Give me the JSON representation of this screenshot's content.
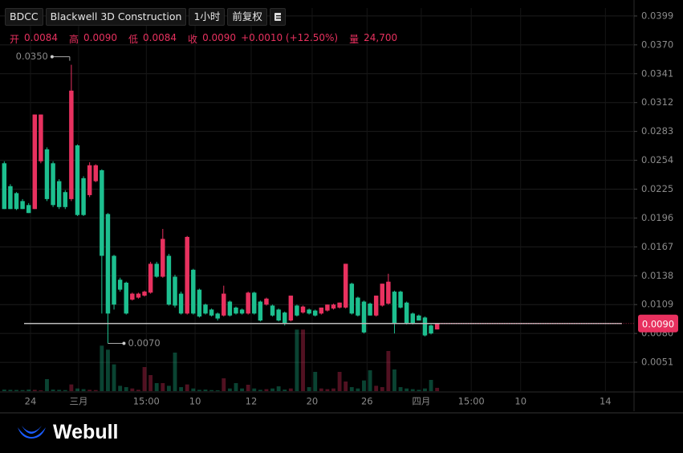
{
  "chart_data": {
    "type": "candlestick",
    "symbol": "BDCC",
    "name": "Blackwell 3D Construction",
    "interval": "1小时",
    "adjust": "前复权",
    "legend": {
      "open_label": "开",
      "open": "0.0084",
      "high_label": "高",
      "high": "0.0090",
      "low_label": "低",
      "low": "0.0084",
      "close_label": "收",
      "close": "0.0090",
      "change": "+0.0010 (+12.50%)",
      "volume_label": "量",
      "volume": "24,700"
    },
    "up_color": "#e8315f",
    "down_color": "#1dbf8f",
    "open": [
      0.0251,
      0.0228,
      0.0221,
      0.0213,
      0.0209,
      0.0205,
      0.0253,
      0.0265,
      0.0251,
      0.0233,
      0.0222,
      0.0215,
      0.0269,
      0.0236,
      0.0219,
      0.0233,
      0.0244,
      0.02,
      0.0158,
      0.0134,
      0.0131,
      0.0114,
      0.0116,
      0.0118,
      0.0121,
      0.015,
      0.0137,
      0.0158,
      0.0137,
      0.012,
      0.01,
      0.0144,
      0.0124,
      0.0109,
      0.0104,
      0.01,
      0.0098,
      0.0112,
      0.0106,
      0.0104,
      0.01,
      0.0121,
      0.0112,
      0.0109,
      0.0108,
      0.0104,
      0.0101,
      0.0093,
      0.0108,
      0.0101,
      0.0104,
      0.0103,
      0.01,
      0.0103,
      0.0105,
      0.0106,
      0.0106,
      0.013,
      0.0116,
      0.0112,
      0.011,
      0.0098,
      0.0108,
      0.011,
      0.0122,
      0.0122,
      0.0111,
      0.01,
      0.0098,
      0.0096,
      0.0088,
      0.0084
    ],
    "high": [
      0.0253,
      0.023,
      0.0222,
      0.0215,
      0.0211,
      0.03,
      0.03,
      0.0267,
      0.0253,
      0.0235,
      0.0224,
      0.035,
      0.027,
      0.0238,
      0.0252,
      0.025,
      0.0245,
      0.0201,
      0.0159,
      0.0136,
      0.0132,
      0.0121,
      0.0121,
      0.0123,
      0.0152,
      0.0152,
      0.0185,
      0.016,
      0.0139,
      0.0122,
      0.0178,
      0.0145,
      0.0125,
      0.011,
      0.0105,
      0.0101,
      0.0128,
      0.0113,
      0.0107,
      0.0105,
      0.0122,
      0.0122,
      0.0113,
      0.0116,
      0.0109,
      0.0105,
      0.0102,
      0.0118,
      0.0109,
      0.0108,
      0.0105,
      0.0104,
      0.0106,
      0.0109,
      0.011,
      0.0111,
      0.015,
      0.0131,
      0.0117,
      0.0113,
      0.0111,
      0.0118,
      0.013,
      0.014,
      0.0123,
      0.0123,
      0.0112,
      0.0101,
      0.0099,
      0.0097,
      0.0089,
      0.009
    ],
    "low": [
      0.0205,
      0.0205,
      0.0204,
      0.0205,
      0.0201,
      0.0205,
      0.0251,
      0.0213,
      0.0207,
      0.0205,
      0.0205,
      0.0213,
      0.0198,
      0.0198,
      0.0217,
      0.0232,
      0.01,
      0.007,
      0.0104,
      0.0122,
      0.0099,
      0.0113,
      0.0115,
      0.0117,
      0.012,
      0.0136,
      0.0136,
      0.0108,
      0.0106,
      0.0099,
      0.0099,
      0.0099,
      0.0096,
      0.0099,
      0.0097,
      0.0093,
      0.0097,
      0.0097,
      0.0099,
      0.0099,
      0.0099,
      0.0099,
      0.0092,
      0.0108,
      0.0097,
      0.0092,
      0.0088,
      0.0092,
      0.0097,
      0.01,
      0.0099,
      0.0097,
      0.0099,
      0.0102,
      0.0104,
      0.0105,
      0.0105,
      0.0099,
      0.0097,
      0.008,
      0.0098,
      0.0097,
      0.0107,
      0.0109,
      0.008,
      0.0105,
      0.0089,
      0.0089,
      0.0093,
      0.0077,
      0.0079,
      0.0084
    ],
    "close": [
      0.0205,
      0.0205,
      0.0205,
      0.0205,
      0.0201,
      0.03,
      0.03,
      0.0215,
      0.0209,
      0.0207,
      0.0207,
      0.0324,
      0.0199,
      0.0199,
      0.0249,
      0.0249,
      0.0158,
      0.01,
      0.0109,
      0.0124,
      0.01,
      0.012,
      0.012,
      0.0122,
      0.015,
      0.0137,
      0.0175,
      0.0109,
      0.0108,
      0.01,
      0.0177,
      0.01,
      0.0097,
      0.01,
      0.0098,
      0.0095,
      0.012,
      0.0098,
      0.01,
      0.01,
      0.0121,
      0.01,
      0.0093,
      0.0115,
      0.0098,
      0.0093,
      0.009,
      0.0118,
      0.0098,
      0.0107,
      0.01,
      0.0098,
      0.0106,
      0.0109,
      0.0109,
      0.0111,
      0.015,
      0.01,
      0.0098,
      0.0081,
      0.0098,
      0.0118,
      0.013,
      0.0132,
      0.009,
      0.0106,
      0.009,
      0.009,
      0.0093,
      0.0078,
      0.008,
      0.009
    ],
    "volume": [
      12000,
      10000,
      9000,
      8000,
      12000,
      10000,
      6000,
      90000,
      12000,
      10000,
      8000,
      50000,
      20000,
      15000,
      10000,
      8000,
      340000,
      310000,
      200000,
      40000,
      30000,
      20000,
      10000,
      180000,
      120000,
      60000,
      60000,
      40000,
      288000,
      30000,
      50000,
      20000,
      10000,
      12000,
      8000,
      6000,
      96000,
      20000,
      60000,
      20000,
      48000,
      20000,
      10000,
      15000,
      20000,
      36000,
      12000,
      20000,
      460000,
      460000,
      30000,
      144000,
      20000,
      15000,
      20000,
      144000,
      72000,
      30000,
      20000,
      80000,
      156000,
      40000,
      30000,
      300000,
      162000,
      30000,
      20000,
      15000,
      10000,
      20000,
      84000,
      24700
    ],
    "volume_lim": [
      0,
      600000
    ],
    "xlim": [
      -0.7,
      103.3
    ],
    "xticks": [
      {
        "value": 4.3,
        "label": "24"
      },
      {
        "value": 12.2,
        "label": "三月"
      },
      {
        "value": 23.3,
        "label": "15:00"
      },
      {
        "value": 31.3,
        "label": "10"
      },
      {
        "value": 40.5,
        "label": "12"
      },
      {
        "value": 50.5,
        "label": "20"
      },
      {
        "value": 59.5,
        "label": "26"
      },
      {
        "value": 68.4,
        "label": "四月"
      },
      {
        "value": 76.6,
        "label": "15:00"
      },
      {
        "value": 84.7,
        "label": "10"
      },
      {
        "value": 98.6,
        "label": "14"
      }
    ],
    "ylim": [
      0.0022,
      0.0407
    ],
    "yticks": [
      {
        "value": 0.0399,
        "label": "0.0399"
      },
      {
        "value": 0.037,
        "label": "0.0370"
      },
      {
        "value": 0.0341,
        "label": "0.0341"
      },
      {
        "value": 0.0312,
        "label": "0.0312"
      },
      {
        "value": 0.0283,
        "label": "0.0283"
      },
      {
        "value": 0.0254,
        "label": "0.0254"
      },
      {
        "value": 0.0225,
        "label": "0.0225"
      },
      {
        "value": 0.0196,
        "label": "0.0196"
      },
      {
        "value": 0.0167,
        "label": "0.0167"
      },
      {
        "value": 0.0138,
        "label": "0.0138"
      },
      {
        "value": 0.0109,
        "label": "0.0109"
      },
      {
        "value": 0.008,
        "label": "0.0080"
      },
      {
        "value": 0.0051,
        "label": "0.0051"
      }
    ],
    "grid": true,
    "last_price": {
      "value": 0.009,
      "label": "0.0090"
    },
    "annotations": [
      {
        "index": 11,
        "value": 0.035,
        "label": "0.0350",
        "side": "high"
      },
      {
        "index": 17,
        "value": 0.007,
        "label": "0.0070",
        "side": "low"
      }
    ],
    "brand": "Webull"
  }
}
